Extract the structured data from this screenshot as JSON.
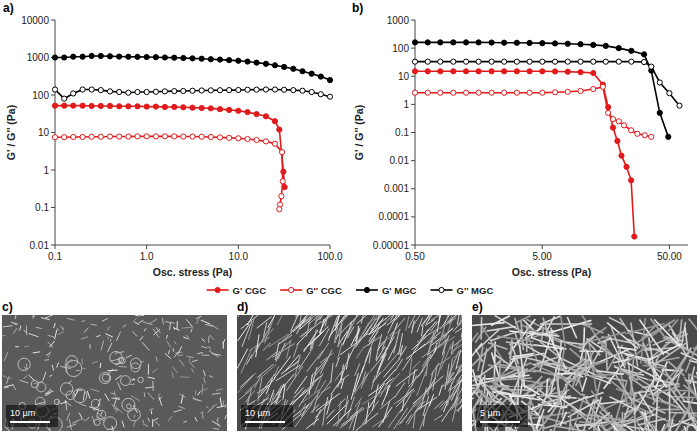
{
  "chart_data": [
    {
      "type": "line",
      "title": "a)",
      "x_label": "Osc. stress (Pa)",
      "y_label": "G' / G'' (Pa)",
      "log": true,
      "grid": false,
      "legend": "bottom",
      "xlim": [
        0.1,
        100
      ],
      "xticks": [
        0.1,
        {
          "value": 1,
          "label": "1.0"
        },
        {
          "value": 10,
          "label": "10.0"
        },
        {
          "value": 100,
          "label": "100.0"
        }
      ],
      "ylim": [
        0.01,
        10000
      ],
      "yticks": [
        0.01,
        0.1,
        1,
        10,
        100,
        1000,
        10000
      ],
      "series": [
        {
          "name": "G' CGC",
          "color": "#e31a1c",
          "marker": "circle",
          "line_style": "solid",
          "x": [
            0.1,
            0.126,
            0.158,
            0.2,
            0.251,
            0.316,
            0.398,
            0.501,
            0.631,
            0.794,
            1,
            1.26,
            1.58,
            2,
            2.51,
            3.16,
            3.98,
            5.01,
            6.31,
            7.94,
            10,
            12.6,
            15.8,
            20,
            25.1,
            28,
            31,
            32
          ],
          "values": [
            52,
            52,
            52,
            52,
            51,
            51,
            51,
            50,
            50,
            50,
            49,
            49,
            48,
            48,
            47,
            46,
            45,
            44,
            42,
            40,
            38,
            35,
            31,
            27,
            20,
            12,
            0.9,
            0.35
          ]
        },
        {
          "name": "G'' CGC",
          "color": "#e31a1c",
          "marker": "open-circle",
          "line_style": "solid",
          "x": [
            0.1,
            0.126,
            0.158,
            0.2,
            0.251,
            0.316,
            0.398,
            0.501,
            0.631,
            0.794,
            1,
            1.26,
            1.58,
            2,
            2.51,
            3.16,
            3.98,
            5.01,
            6.31,
            7.94,
            10,
            12.6,
            15.8,
            20,
            25.1,
            30,
            30.5,
            29.5,
            28.5,
            28
          ],
          "values": [
            7.5,
            7.5,
            7.6,
            7.6,
            7.7,
            7.7,
            7.8,
            7.8,
            7.8,
            7.9,
            7.9,
            7.9,
            7.9,
            7.9,
            7.8,
            7.8,
            7.7,
            7.6,
            7.4,
            7.2,
            7,
            6.7,
            6.3,
            5.8,
            5,
            3,
            0.5,
            0.2,
            0.12,
            0.09
          ]
        },
        {
          "name": "G' MGC",
          "color": "#000000",
          "marker": "circle",
          "line_style": "solid",
          "x": [
            0.1,
            0.126,
            0.158,
            0.2,
            0.251,
            0.316,
            0.398,
            0.501,
            0.631,
            0.794,
            1,
            1.26,
            1.58,
            2,
            2.51,
            3.16,
            3.98,
            5.01,
            6.31,
            7.94,
            10,
            12.6,
            15.8,
            20,
            25.1,
            31.6,
            39.8,
            50.1,
            63.1,
            79.4,
            100
          ],
          "values": [
            1000,
            1000,
            1050,
            1050,
            1100,
            1100,
            1080,
            1060,
            1050,
            1040,
            1030,
            1020,
            1000,
            990,
            970,
            950,
            930,
            900,
            880,
            850,
            820,
            780,
            730,
            680,
            620,
            560,
            500,
            430,
            370,
            310,
            250
          ]
        },
        {
          "name": "G'' MGC",
          "color": "#000000",
          "marker": "open-circle",
          "line_style": "solid",
          "x": [
            0.1,
            0.126,
            0.158,
            0.2,
            0.251,
            0.316,
            0.398,
            0.501,
            0.631,
            0.794,
            1,
            1.26,
            1.58,
            2,
            2.51,
            3.16,
            3.98,
            5.01,
            6.31,
            7.94,
            10,
            12.6,
            15.8,
            20,
            25.1,
            31.6,
            39.8,
            50.1,
            63.1,
            79.4,
            100
          ],
          "values": [
            140,
            80,
            110,
            140,
            140,
            135,
            125,
            120,
            115,
            120,
            120,
            122,
            125,
            127,
            128,
            130,
            132,
            133,
            134,
            135,
            136,
            138,
            139,
            140,
            140,
            138,
            135,
            130,
            120,
            105,
            90
          ]
        }
      ]
    },
    {
      "type": "line",
      "title": "b)",
      "x_label": "Osc. stress (Pa)",
      "y_label": "G' / G'' (Pa)",
      "log": true,
      "grid": false,
      "xlim": [
        0.5,
        70
      ],
      "xticks": [
        {
          "value": 0.5,
          "label": "0.50"
        },
        {
          "value": 5,
          "label": "5.00"
        },
        {
          "value": 50,
          "label": "50.00"
        }
      ],
      "ylim": [
        1e-05,
        1000
      ],
      "yticks": [
        1e-05,
        0.0001,
        0.001,
        0.01,
        0.1,
        1,
        10,
        100,
        1000
      ],
      "series": [
        {
          "name": "G' CGC",
          "color": "#e31a1c",
          "marker": "circle",
          "line_style": "solid",
          "x": [
            0.5,
            0.63,
            0.79,
            1,
            1.26,
            1.58,
            2,
            2.51,
            3.16,
            3.98,
            5.01,
            6.31,
            7.94,
            10,
            12.6,
            15,
            16.5,
            18,
            19.5,
            21,
            23,
            25,
            26.5
          ],
          "values": [
            15,
            15,
            15,
            15,
            15,
            15,
            15,
            15,
            15,
            15,
            15,
            14.8,
            14.5,
            14,
            13,
            5,
            0.8,
            0.15,
            0.05,
            0.015,
            0.006,
            0.002,
            2e-05
          ]
        },
        {
          "name": "G'' CGC",
          "color": "#e31a1c",
          "marker": "open-circle",
          "line_style": "solid",
          "x": [
            0.5,
            0.63,
            0.79,
            1,
            1.26,
            1.58,
            2,
            2.51,
            3.16,
            3.98,
            5.01,
            6.31,
            7.94,
            10,
            12.6,
            15,
            16.5,
            18,
            20,
            22,
            25,
            28,
            32,
            36
          ],
          "values": [
            2.6,
            2.6,
            2.6,
            2.6,
            2.6,
            2.6,
            2.6,
            2.6,
            2.6,
            2.6,
            2.6,
            2.7,
            2.8,
            3,
            3.5,
            4.2,
            0.5,
            0.3,
            0.25,
            0.18,
            0.12,
            0.09,
            0.08,
            0.07
          ]
        },
        {
          "name": "G' MGC",
          "color": "#000000",
          "marker": "circle",
          "line_style": "solid",
          "x": [
            0.5,
            0.63,
            0.79,
            1,
            1.26,
            1.58,
            2,
            2.51,
            3.16,
            3.98,
            5.01,
            6.31,
            7.94,
            10,
            12.6,
            15.8,
            20,
            25.1,
            31.6,
            36,
            42,
            49
          ],
          "values": [
            160,
            160,
            160,
            160,
            160,
            160,
            158,
            156,
            155,
            153,
            150,
            147,
            143,
            138,
            130,
            120,
            100,
            80,
            60,
            16,
            0.5,
            0.07
          ]
        },
        {
          "name": "G'' MGC",
          "color": "#000000",
          "marker": "open-circle",
          "line_style": "solid",
          "x": [
            0.5,
            0.63,
            0.79,
            1,
            1.26,
            1.58,
            2,
            2.51,
            3.16,
            3.98,
            5.01,
            6.31,
            7.94,
            10,
            12.6,
            15.8,
            20,
            25.1,
            31.6,
            36,
            42,
            50,
            60
          ],
          "values": [
            33,
            33,
            33,
            33,
            33,
            33,
            33,
            33,
            33,
            33,
            33,
            33,
            33,
            33,
            33,
            33,
            33,
            33,
            32,
            22,
            6,
            2.5,
            0.9
          ]
        }
      ]
    }
  ],
  "images": [
    {
      "label": "c)",
      "scale_bar": "10 µm"
    },
    {
      "label": "d)",
      "scale_bar": "10 µm"
    },
    {
      "label": "e)",
      "scale_bar": "5 µm"
    }
  ]
}
